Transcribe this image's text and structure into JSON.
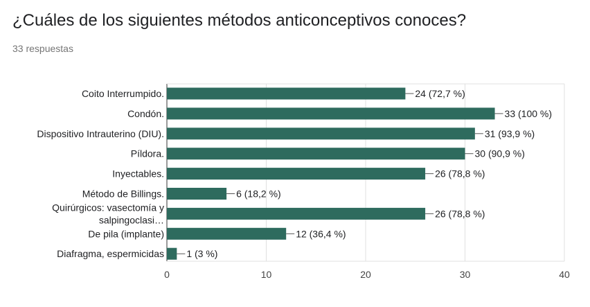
{
  "title": "¿Cuáles de los siguientes métodos anticonceptivos conoces?",
  "subtitle": "33 respuestas",
  "chart_data": {
    "type": "bar",
    "orientation": "horizontal",
    "title": "",
    "xlabel": "",
    "ylabel": "",
    "xlim": [
      0,
      40
    ],
    "xticks": [
      0,
      10,
      20,
      30,
      40
    ],
    "grid": true,
    "bar_color": "#2e6b5e",
    "categories": [
      [
        "Coito Interrumpido."
      ],
      [
        "Condón."
      ],
      [
        "Dispositivo Intrauterino (DIU)."
      ],
      [
        "Píldora."
      ],
      [
        "Inyectables."
      ],
      [
        "Método de Billings."
      ],
      [
        "Quirúrgicos: vasectomía y",
        "salpingoclasi…"
      ],
      [
        "De pila (implante)"
      ],
      [
        "Diafragma, espermicidas"
      ]
    ],
    "values": [
      24,
      33,
      31,
      30,
      26,
      6,
      26,
      12,
      1
    ],
    "data_labels": [
      "24 (72,7 %)",
      "33 (100 %)",
      "31 (93,9 %)",
      "30 (90,9 %)",
      "26 (78,8 %)",
      "6 (18,2 %)",
      "26 (78,8 %)",
      "12 (36,4 %)",
      "1 (3 %)"
    ]
  }
}
